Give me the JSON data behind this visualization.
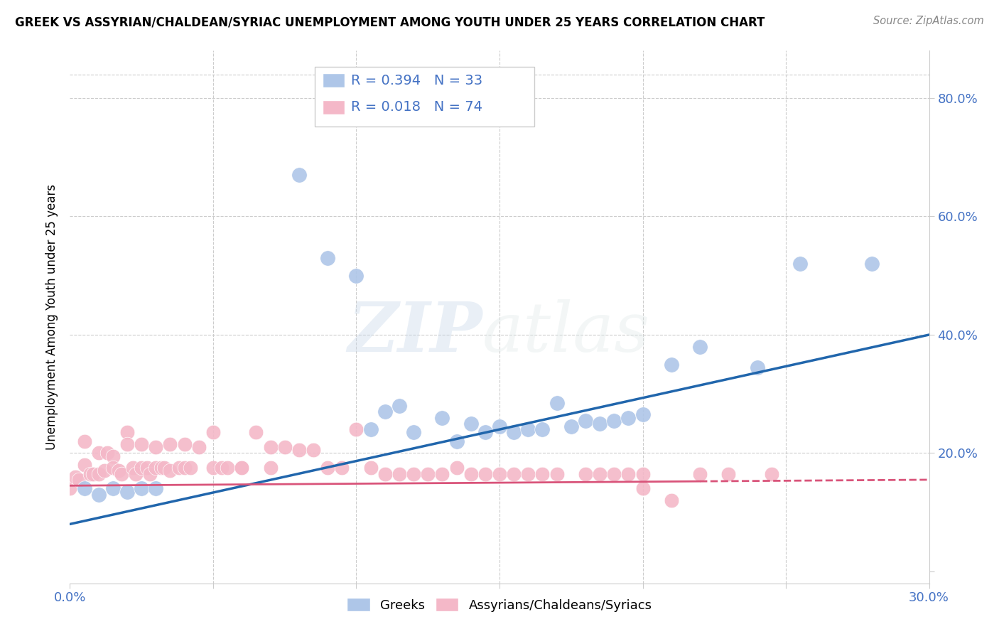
{
  "title": "GREEK VS ASSYRIAN/CHALDEAN/SYRIAC UNEMPLOYMENT AMONG YOUTH UNDER 25 YEARS CORRELATION CHART",
  "source": "Source: ZipAtlas.com",
  "ylabel": "Unemployment Among Youth under 25 years",
  "xlim": [
    0.0,
    0.3
  ],
  "ylim": [
    -0.02,
    0.88
  ],
  "xticks": [
    0.0,
    0.05,
    0.1,
    0.15,
    0.2,
    0.25,
    0.3
  ],
  "xticklabels": [
    "0.0%",
    "",
    "",
    "",
    "",
    "",
    "30.0%"
  ],
  "yticks": [
    0.0,
    0.2,
    0.4,
    0.6,
    0.8
  ],
  "yticklabels_right": [
    "",
    "20.0%",
    "40.0%",
    "60.0%",
    "80.0%"
  ],
  "blue_color": "#aec6e8",
  "pink_color": "#f4b8c8",
  "blue_line_color": "#2166ac",
  "pink_line_color": "#d9547a",
  "blue_points_x": [
    0.005,
    0.01,
    0.015,
    0.02,
    0.025,
    0.03,
    0.08,
    0.09,
    0.1,
    0.105,
    0.11,
    0.115,
    0.12,
    0.13,
    0.135,
    0.14,
    0.145,
    0.15,
    0.155,
    0.16,
    0.165,
    0.17,
    0.175,
    0.18,
    0.185,
    0.19,
    0.195,
    0.2,
    0.21,
    0.22,
    0.24,
    0.255,
    0.28
  ],
  "blue_points_y": [
    0.14,
    0.13,
    0.14,
    0.135,
    0.14,
    0.14,
    0.67,
    0.53,
    0.5,
    0.24,
    0.27,
    0.28,
    0.235,
    0.26,
    0.22,
    0.25,
    0.235,
    0.245,
    0.235,
    0.24,
    0.24,
    0.285,
    0.245,
    0.255,
    0.25,
    0.255,
    0.26,
    0.265,
    0.35,
    0.38,
    0.345,
    0.52,
    0.52
  ],
  "pink_points_x": [
    0.0,
    0.002,
    0.003,
    0.005,
    0.005,
    0.007,
    0.008,
    0.01,
    0.01,
    0.012,
    0.013,
    0.015,
    0.015,
    0.017,
    0.018,
    0.02,
    0.02,
    0.022,
    0.023,
    0.025,
    0.025,
    0.027,
    0.028,
    0.03,
    0.03,
    0.032,
    0.033,
    0.035,
    0.035,
    0.038,
    0.04,
    0.04,
    0.042,
    0.045,
    0.05,
    0.05,
    0.053,
    0.055,
    0.06,
    0.06,
    0.065,
    0.07,
    0.07,
    0.075,
    0.08,
    0.085,
    0.09,
    0.095,
    0.1,
    0.105,
    0.11,
    0.115,
    0.12,
    0.125,
    0.13,
    0.135,
    0.14,
    0.145,
    0.15,
    0.155,
    0.16,
    0.165,
    0.17,
    0.18,
    0.185,
    0.19,
    0.195,
    0.2,
    0.2,
    0.21,
    0.22,
    0.23,
    0.245
  ],
  "pink_points_y": [
    0.14,
    0.16,
    0.155,
    0.18,
    0.22,
    0.165,
    0.165,
    0.2,
    0.165,
    0.17,
    0.2,
    0.195,
    0.175,
    0.17,
    0.165,
    0.235,
    0.215,
    0.175,
    0.165,
    0.215,
    0.175,
    0.175,
    0.165,
    0.21,
    0.175,
    0.175,
    0.175,
    0.215,
    0.17,
    0.175,
    0.215,
    0.175,
    0.175,
    0.21,
    0.235,
    0.175,
    0.175,
    0.175,
    0.175,
    0.175,
    0.235,
    0.21,
    0.175,
    0.21,
    0.205,
    0.205,
    0.175,
    0.175,
    0.24,
    0.175,
    0.165,
    0.165,
    0.165,
    0.165,
    0.165,
    0.175,
    0.165,
    0.165,
    0.165,
    0.165,
    0.165,
    0.165,
    0.165,
    0.165,
    0.165,
    0.165,
    0.165,
    0.165,
    0.14,
    0.12,
    0.165,
    0.165,
    0.165
  ]
}
